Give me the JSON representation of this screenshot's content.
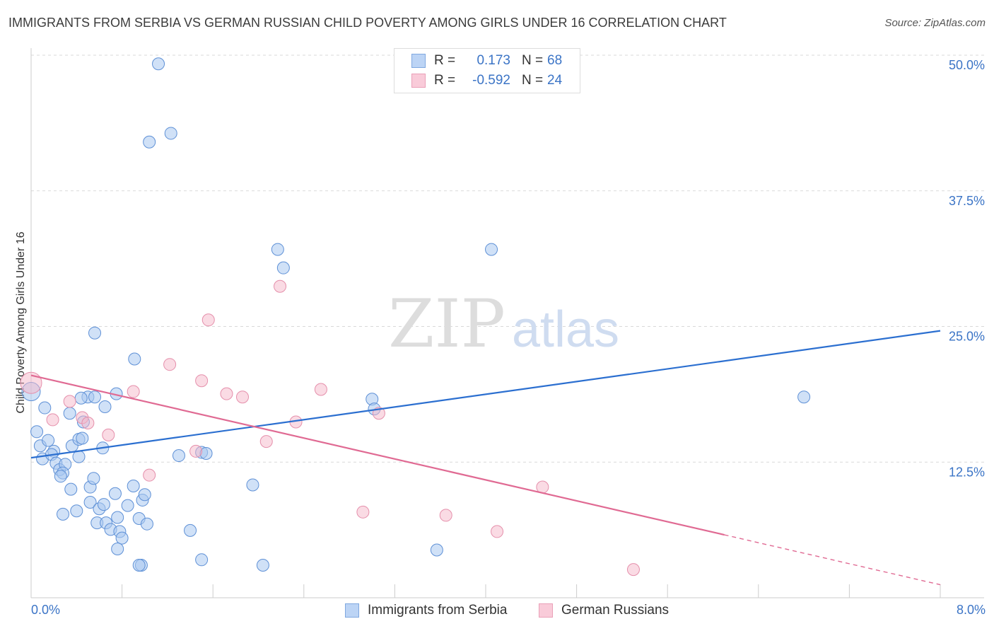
{
  "title": "IMMIGRANTS FROM SERBIA VS GERMAN RUSSIAN CHILD POVERTY AMONG GIRLS UNDER 16 CORRELATION CHART",
  "source": "Source: ZipAtlas.com",
  "watermark": {
    "zip": "ZIP",
    "atlas": "atlas"
  },
  "legend_top": {
    "rows": [
      {
        "r_label": "R =",
        "r_value": "0.173",
        "n_label": "N =",
        "n_value": "68"
      },
      {
        "r_label": "R =",
        "r_value": "-0.592",
        "n_label": "N =",
        "n_value": "24"
      }
    ]
  },
  "legend_bottom": {
    "series1": "Immigrants from Serbia",
    "series2": "German Russians"
  },
  "x_axis": {
    "min_label": "0.0%",
    "max_label": "8.0%"
  },
  "chart_data": {
    "type": "scatter",
    "title": "IMMIGRANTS FROM SERBIA VS GERMAN RUSSIAN CHILD POVERTY AMONG GIRLS UNDER 16 CORRELATION CHART",
    "xlabel": "",
    "ylabel": "Child Poverty Among Girls Under 16",
    "xlim": [
      0,
      8
    ],
    "ylim": [
      0,
      50
    ],
    "yticks": [
      12.5,
      25.0,
      37.5,
      50.0
    ],
    "ytick_labels": [
      "12.5%",
      "25.0%",
      "37.5%",
      "50.0%"
    ],
    "grid": true,
    "legend_placement": "top-center",
    "colors": {
      "series1": "#a9c8f0",
      "series1_line": "#2b6fd0",
      "series2": "#f5b8ca",
      "series2_line": "#e06a93",
      "tick_label": "#3b74c6"
    },
    "series": [
      {
        "name": "Immigrants from Serbia",
        "r": 0.173,
        "n": 68,
        "trend": [
          [
            0,
            12.9
          ],
          [
            8,
            24.6
          ]
        ],
        "points": [
          [
            0.0,
            19.0
          ],
          [
            0.05,
            15.3
          ],
          [
            0.12,
            17.5
          ],
          [
            0.08,
            14.0
          ],
          [
            0.15,
            14.5
          ],
          [
            0.1,
            12.8
          ],
          [
            0.2,
            13.5
          ],
          [
            0.18,
            13.2
          ],
          [
            0.22,
            12.4
          ],
          [
            0.25,
            11.8
          ],
          [
            0.3,
            12.3
          ],
          [
            0.28,
            11.5
          ],
          [
            0.26,
            11.2
          ],
          [
            0.35,
            10.0
          ],
          [
            0.4,
            8.0
          ],
          [
            0.28,
            7.7
          ],
          [
            0.34,
            17.0
          ],
          [
            0.36,
            14.0
          ],
          [
            0.42,
            14.6
          ],
          [
            0.45,
            14.7
          ],
          [
            0.42,
            13.0
          ],
          [
            0.46,
            16.2
          ],
          [
            0.5,
            18.5
          ],
          [
            0.52,
            10.2
          ],
          [
            0.55,
            11.0
          ],
          [
            0.52,
            8.8
          ],
          [
            0.58,
            6.9
          ],
          [
            0.6,
            8.2
          ],
          [
            0.64,
            8.6
          ],
          [
            0.66,
            6.9
          ],
          [
            0.7,
            6.3
          ],
          [
            0.74,
            9.6
          ],
          [
            0.76,
            7.4
          ],
          [
            0.78,
            6.1
          ],
          [
            0.8,
            5.5
          ],
          [
            0.76,
            4.5
          ],
          [
            0.85,
            8.5
          ],
          [
            0.9,
            10.3
          ],
          [
            0.95,
            7.3
          ],
          [
            0.98,
            9.0
          ],
          [
            1.0,
            9.5
          ],
          [
            1.02,
            6.8
          ],
          [
            0.97,
            3.0
          ],
          [
            0.95,
            3.0
          ],
          [
            0.56,
            18.5
          ],
          [
            0.65,
            17.6
          ],
          [
            0.75,
            18.8
          ],
          [
            0.63,
            13.8
          ],
          [
            0.56,
            24.4
          ],
          [
            0.91,
            22.0
          ],
          [
            1.12,
            49.2
          ],
          [
            1.04,
            42.0
          ],
          [
            1.23,
            42.8
          ],
          [
            1.3,
            13.1
          ],
          [
            1.4,
            6.2
          ],
          [
            1.5,
            3.5
          ],
          [
            1.5,
            13.4
          ],
          [
            1.54,
            13.3
          ],
          [
            1.95,
            10.4
          ],
          [
            2.04,
            3.0
          ],
          [
            2.17,
            32.1
          ],
          [
            2.22,
            30.4
          ],
          [
            3.0,
            18.3
          ],
          [
            3.02,
            17.4
          ],
          [
            3.57,
            4.4
          ],
          [
            4.05,
            32.1
          ],
          [
            6.8,
            18.5
          ],
          [
            0.44,
            18.4
          ]
        ]
      },
      {
        "name": "German Russians",
        "r": -0.592,
        "n": 24,
        "trend_solid": [
          [
            0,
            20.5
          ],
          [
            6.1,
            5.8
          ]
        ],
        "trend_dashed": [
          [
            6.1,
            5.8
          ],
          [
            8,
            1.2
          ]
        ],
        "points": [
          [
            0.0,
            19.8
          ],
          [
            0.19,
            16.4
          ],
          [
            0.34,
            18.1
          ],
          [
            0.45,
            16.6
          ],
          [
            0.5,
            16.1
          ],
          [
            0.68,
            15.0
          ],
          [
            0.9,
            19.0
          ],
          [
            1.04,
            11.3
          ],
          [
            1.22,
            21.5
          ],
          [
            1.45,
            13.5
          ],
          [
            1.5,
            20.0
          ],
          [
            1.56,
            25.6
          ],
          [
            1.72,
            18.8
          ],
          [
            1.86,
            18.5
          ],
          [
            2.07,
            14.4
          ],
          [
            2.19,
            28.7
          ],
          [
            2.33,
            16.2
          ],
          [
            2.55,
            19.2
          ],
          [
            2.92,
            7.9
          ],
          [
            3.06,
            17.0
          ],
          [
            3.65,
            7.6
          ],
          [
            4.1,
            6.1
          ],
          [
            4.5,
            10.2
          ],
          [
            5.3,
            2.6
          ]
        ]
      }
    ]
  }
}
